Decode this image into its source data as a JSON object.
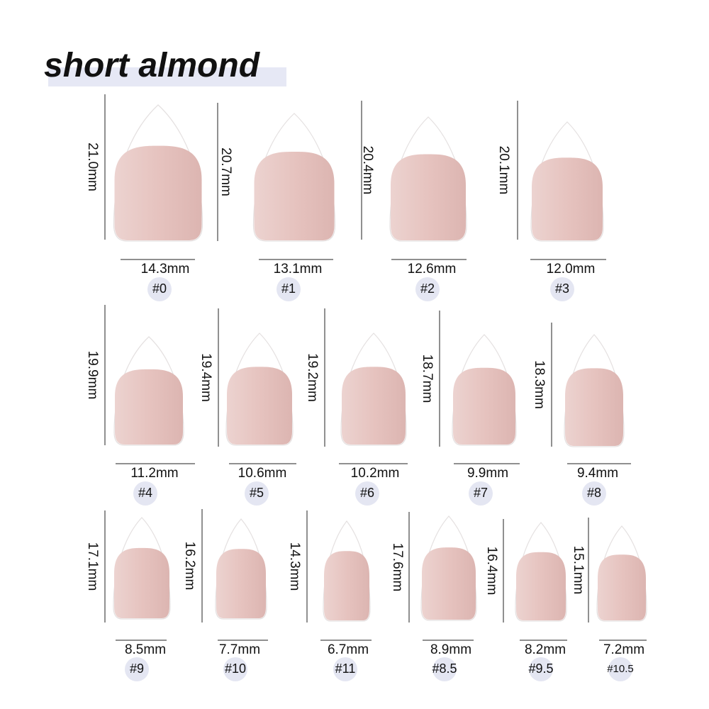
{
  "title": "short almond",
  "nails": [
    {
      "length": "21.0mm",
      "width": "14.3mm",
      "size": "#0"
    },
    {
      "length": "20.7mm",
      "width": "13.1mm",
      "size": "#1"
    },
    {
      "length": "20.4mm",
      "width": "12.6mm",
      "size": "#2"
    },
    {
      "length": "20.1mm",
      "width": "12.0mm",
      "size": "#3"
    },
    {
      "length": "19.9mm",
      "width": "11.2mm",
      "size": "#4"
    },
    {
      "length": "19.4mm",
      "width": "10.6mm",
      "size": "#5"
    },
    {
      "length": "19.2mm",
      "width": "10.2mm",
      "size": "#6"
    },
    {
      "length": "18.7mm",
      "width": "9.9mm",
      "size": "#7"
    },
    {
      "length": "18.3mm",
      "width": "9.4mm",
      "size": "#8"
    },
    {
      "length": "17.1mm",
      "width": "8.5mm",
      "size": "#9"
    },
    {
      "length": "16.2mm",
      "width": "7.7mm",
      "size": "#10"
    },
    {
      "length": "14.3mm",
      "width": "6.7mm",
      "size": "#11"
    },
    {
      "length": "17.6mm",
      "width": "8.9mm",
      "size": "#8.5"
    },
    {
      "length": "16.4mm",
      "width": "8.2mm",
      "size": "#9.5"
    },
    {
      "length": "15.1mm",
      "width": "7.2mm",
      "size": "#10.5"
    }
  ]
}
